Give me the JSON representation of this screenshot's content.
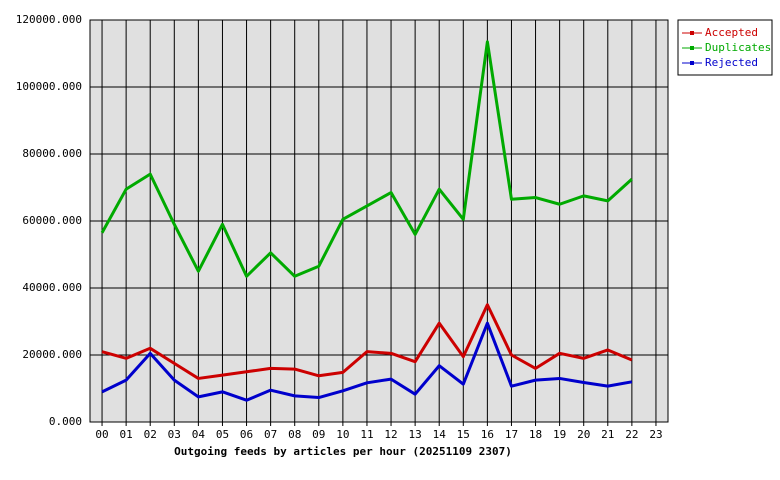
{
  "chart_data": {
    "type": "line",
    "xlabel": "Outgoing feeds by articles per hour (20251109 2307)",
    "categories": [
      "00",
      "01",
      "02",
      "03",
      "04",
      "05",
      "06",
      "07",
      "08",
      "09",
      "10",
      "11",
      "12",
      "13",
      "14",
      "15",
      "16",
      "17",
      "18",
      "19",
      "20",
      "21",
      "22",
      "23"
    ],
    "series": [
      {
        "name": "Accepted",
        "color": "#cc0000",
        "values": [
          21000,
          19000,
          22000,
          17500,
          13000,
          14000,
          15000,
          16000,
          15800,
          13800,
          14800,
          21000,
          20500,
          18000,
          29500,
          19500,
          35000,
          20000,
          16000,
          20500,
          19000,
          21500,
          18500,
          null
        ]
      },
      {
        "name": "Duplicates",
        "color": "#00aa00",
        "values": [
          56500,
          69500,
          74000,
          59000,
          45000,
          59000,
          43500,
          50500,
          43500,
          46500,
          60500,
          64500,
          68500,
          56000,
          69500,
          60500,
          113500,
          66500,
          67000,
          65000,
          67500,
          66000,
          72500,
          null
        ]
      },
      {
        "name": "Rejected",
        "color": "#0000cc",
        "values": [
          9000,
          12500,
          20500,
          12500,
          7500,
          9000,
          6500,
          9500,
          7800,
          7300,
          9300,
          11700,
          12800,
          8300,
          16800,
          11300,
          29500,
          10700,
          12500,
          13000,
          11800,
          10700,
          12000,
          null
        ]
      }
    ],
    "ylim": [
      0,
      120000
    ],
    "yticks": [
      {
        "value": 0,
        "label": "0.000"
      },
      {
        "value": 20000,
        "label": "20000.000"
      },
      {
        "value": 40000,
        "label": "40000.000"
      },
      {
        "value": 60000,
        "label": "60000.000"
      },
      {
        "value": 80000,
        "label": "80000.000"
      },
      {
        "value": 100000,
        "label": "100000.000"
      },
      {
        "value": 120000,
        "label": "120000.000"
      }
    ],
    "grid": true,
    "legend": "right"
  }
}
